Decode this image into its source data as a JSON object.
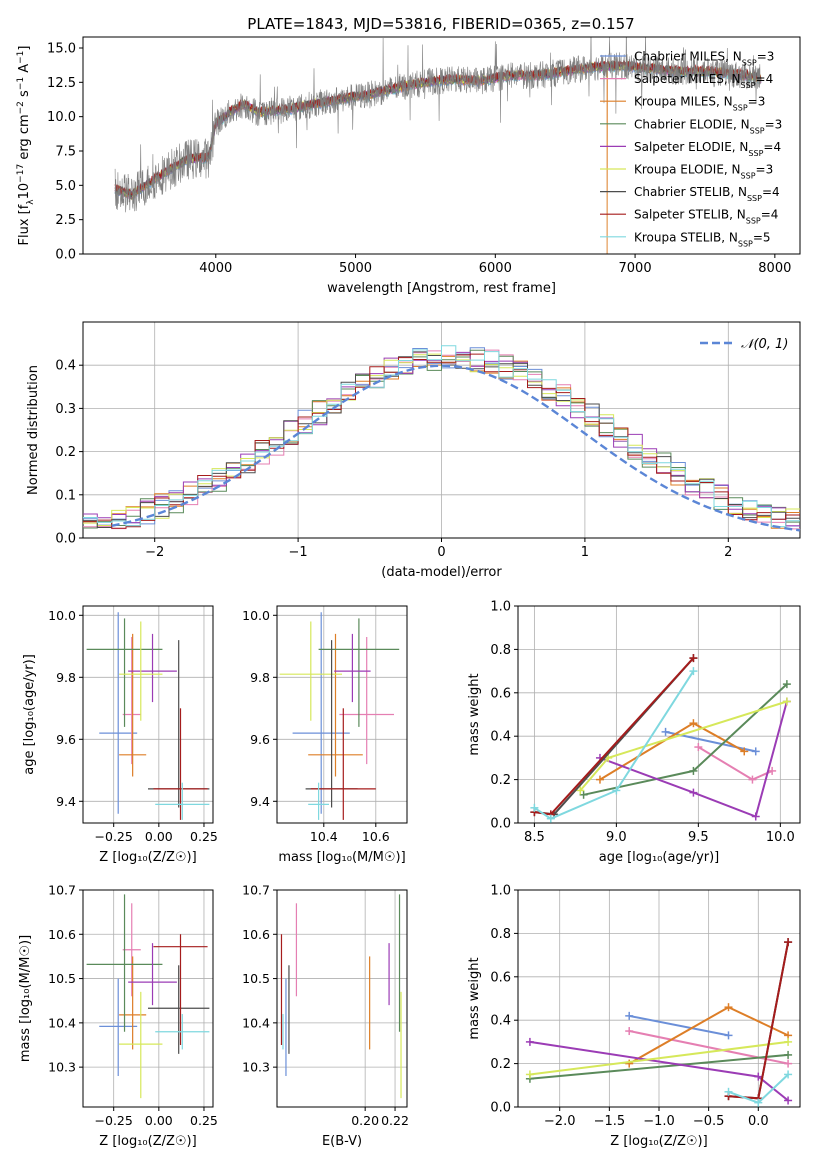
{
  "figure": {
    "title": "PLATE=1843, MJD=53816, FIBERID=0365, z=0.157"
  },
  "colors": {
    "CM": "#6b8fd8",
    "SM": "#e57fb2",
    "KM": "#dd7e27",
    "CE": "#5a8a5a",
    "SE": "#9b3cb5",
    "KE": "#d6e85a",
    "CS": "#4d4d4d",
    "SS": "#a51c1c",
    "KS": "#7fd8df",
    "normal": "#5b86d6",
    "grid": "#b0b0b0"
  },
  "chart_data": [
    {
      "id": "spectrum",
      "type": "line",
      "xlabel": "wavelength [Angstrom, rest frame]",
      "ylabel_parts": [
        "Flux [f",
        "λ",
        "10",
        "−17",
        " erg cm",
        "−2",
        " s",
        "−1",
        " A",
        "−1",
        "]"
      ],
      "xlim": [
        3050,
        8180
      ],
      "ylim": [
        0,
        15.8
      ],
      "xticks": [
        4000,
        5000,
        6000,
        7000,
        8000
      ],
      "yticks": [
        0.0,
        2.5,
        5.0,
        7.5,
        10.0,
        12.5,
        15.0
      ],
      "ytick_labels": [
        "0.0",
        "2.5",
        "5.0",
        "7.5",
        "10.0",
        "12.5",
        "15.0"
      ],
      "grid": false,
      "legend_position": "top-right",
      "data_x": [
        3280,
        3400,
        3600,
        3800,
        3950,
        4000,
        4100,
        4200,
        4300,
        4500,
        4700,
        4900,
        5100,
        5300,
        5500,
        5700,
        5900,
        6100,
        6300,
        6500,
        6700,
        6900,
        7100,
        7300,
        7500,
        7700,
        7900
      ],
      "data_y": [
        4.7,
        4.3,
        5.7,
        6.9,
        7.0,
        9.5,
        10.3,
        10.9,
        10.3,
        10.5,
        10.9,
        11.3,
        11.6,
        12.1,
        12.5,
        12.7,
        12.6,
        13.0,
        13.0,
        13.3,
        13.6,
        13.7,
        13.5,
        13.3,
        13.3,
        13.1,
        12.8
      ],
      "model_edges": [
        {
          "series": "SM",
          "x": 3530
        },
        {
          "series": "KE",
          "x": 3910
        },
        {
          "series": "KM",
          "x": 6800
        },
        {
          "series": "SS",
          "x": 7410
        }
      ],
      "series": [
        {
          "key": "CM",
          "name": "Chabrier MILES",
          "nssp": "3"
        },
        {
          "key": "SM",
          "name": "Salpeter MILES",
          "nssp": "4"
        },
        {
          "key": "KM",
          "name": "Kroupa MILES",
          "nssp": "3"
        },
        {
          "key": "CE",
          "name": "Chabrier ELODIE",
          "nssp": "3"
        },
        {
          "key": "SE",
          "name": "Salpeter ELODIE",
          "nssp": "4"
        },
        {
          "key": "KE",
          "name": "Kroupa ELODIE",
          "nssp": "3"
        },
        {
          "key": "CS",
          "name": "Chabrier STELIB",
          "nssp": "4"
        },
        {
          "key": "SS",
          "name": "Salpeter STELIB",
          "nssp": "4"
        },
        {
          "key": "KS",
          "name": "Kroupa STELIB",
          "nssp": "5"
        }
      ]
    },
    {
      "id": "residuals",
      "type": "line",
      "xlabel": "(data-model)/error",
      "ylabel": "Normed distribution",
      "xlim": [
        -2.5,
        2.5
      ],
      "ylim": [
        0,
        0.5
      ],
      "xticks": [
        -2,
        -1,
        0,
        1,
        2
      ],
      "xtick_labels": [
        "−2",
        "−1",
        "0",
        "1",
        "2"
      ],
      "yticks": [
        0.0,
        0.1,
        0.2,
        0.3,
        0.4
      ],
      "ytick_labels": [
        "0.0",
        "0.1",
        "0.2",
        "0.3",
        "0.4"
      ],
      "grid": true,
      "legend": "𝒩(0, 1)",
      "legend_position": "top-right",
      "bin_width": 0.1,
      "bin_start": -2.5
    },
    {
      "id": "age_vs_Z",
      "type": "scatter",
      "xlabel": "Z [log₁₀(Z/Z☉)]",
      "ylabel": "age  [log₁₀(age/yr)]",
      "xlim": [
        -0.42,
        0.3
      ],
      "ylim": [
        9.33,
        10.03
      ],
      "xticks": [
        -0.25,
        0.0,
        0.25
      ],
      "xtick_labels": [
        "−0.25",
        "0.00",
        "0.25"
      ],
      "yticks": [
        9.4,
        9.6,
        9.8,
        10.0
      ],
      "ytick_labels": [
        "9.4",
        "9.6",
        "9.8",
        "10.0"
      ],
      "grid": true
    },
    {
      "id": "age_vs_mass",
      "type": "scatter",
      "xlabel": "mass [log₁₀(M/M☉)]",
      "xlim": [
        10.22,
        10.72
      ],
      "ylim": [
        9.33,
        10.03
      ],
      "xticks": [
        10.4,
        10.6
      ],
      "xtick_labels": [
        "10.4",
        "10.6"
      ],
      "yticks": [
        9.4,
        9.6,
        9.8,
        10.0
      ],
      "ytick_labels": [
        "9.4",
        "9.6",
        "9.8",
        "10.0"
      ],
      "grid": true
    },
    {
      "id": "weight_vs_age",
      "type": "line",
      "xlabel": "age  [log₁₀(age/yr)]",
      "ylabel": "mass weight",
      "xlim": [
        8.4,
        10.12
      ],
      "ylim": [
        0,
        1.0
      ],
      "xticks": [
        8.5,
        9.0,
        9.5,
        10.0
      ],
      "xtick_labels": [
        "8.5",
        "9.0",
        "9.5",
        "10.0"
      ],
      "yticks": [
        0.0,
        0.2,
        0.4,
        0.6,
        0.8,
        1.0
      ],
      "ytick_labels": [
        "0.0",
        "0.2",
        "0.4",
        "0.6",
        "0.8",
        "1.0"
      ],
      "grid": true
    },
    {
      "id": "mass_vs_Z",
      "type": "scatter",
      "xlabel": "Z [log₁₀(Z/Z☉)]",
      "ylabel": "mass [log₁₀(M/M☉)]",
      "xlim": [
        -0.42,
        0.3
      ],
      "ylim": [
        10.21,
        10.7
      ],
      "xticks": [
        -0.25,
        0.0,
        0.25
      ],
      "xtick_labels": [
        "−0.25",
        "0.00",
        "0.25"
      ],
      "yticks": [
        10.3,
        10.4,
        10.5,
        10.6,
        10.7
      ],
      "ytick_labels": [
        "10.3",
        "10.4",
        "10.5",
        "10.6",
        "10.7"
      ],
      "grid": true
    },
    {
      "id": "mass_vs_EBV",
      "type": "scatter",
      "xlabel": "E(B-V)",
      "xlim": [
        0.141,
        0.228
      ],
      "ylim": [
        10.21,
        10.7
      ],
      "xticks": [
        0.2,
        0.22
      ],
      "xtick_labels": [
        "0.20",
        "0.22"
      ],
      "yticks": [
        10.3,
        10.4,
        10.5,
        10.6,
        10.7
      ],
      "ytick_labels": [
        "10.3",
        "10.4",
        "10.5",
        "10.6",
        "10.7"
      ],
      "grid": true
    },
    {
      "id": "weight_vs_Z",
      "type": "line",
      "xlabel": "Z [log₁₀(Z/Z☉)]",
      "ylabel": "mass weight",
      "xlim": [
        -2.42,
        0.42
      ],
      "ylim": [
        0,
        1.0
      ],
      "xticks": [
        -2.0,
        -1.5,
        -1.0,
        -0.5,
        0.0
      ],
      "xtick_labels": [
        "−2.0",
        "−1.5",
        "−1.0",
        "−0.5",
        "0.0"
      ],
      "yticks": [
        0.0,
        0.2,
        0.4,
        0.6,
        0.8,
        1.0
      ],
      "ytick_labels": [
        "0.0",
        "0.2",
        "0.4",
        "0.6",
        "0.8",
        "1.0"
      ],
      "grid": true
    }
  ],
  "fits": [
    {
      "key": "CM",
      "Z": [
        -0.33,
        -0.12
      ],
      "age": [
        9.62,
        9.36,
        10.01
      ],
      "mass": [
        10.392,
        10.28,
        10.5
      ],
      "ebv": 0.147
    },
    {
      "key": "SM",
      "Z": [
        -0.2,
        -0.1
      ],
      "age": [
        9.68,
        9.52,
        9.93
      ],
      "mass": [
        10.565,
        10.46,
        10.67
      ],
      "ebv": 0.154
    },
    {
      "key": "KM",
      "Z": [
        -0.22,
        -0.07
      ],
      "age": [
        9.55,
        9.48,
        9.94
      ],
      "mass": [
        10.418,
        10.34,
        10.55
      ],
      "ebv": 0.203
    },
    {
      "key": "CE",
      "Z": [
        -0.4,
        0.02
      ],
      "age": [
        9.89,
        9.64,
        9.99
      ],
      "mass": [
        10.532,
        10.38,
        10.69
      ],
      "ebv": 0.223
    },
    {
      "key": "SE",
      "Z": [
        -0.17,
        0.1
      ],
      "age": [
        9.82,
        9.72,
        9.94
      ],
      "mass": [
        10.492,
        10.44,
        10.58
      ],
      "ebv": 0.216
    },
    {
      "key": "KE",
      "Z": [
        -0.22,
        0.02
      ],
      "age": [
        9.81,
        9.66,
        9.98
      ],
      "mass": [
        10.352,
        10.23,
        10.47
      ],
      "ebv": 0.224
    },
    {
      "key": "CS",
      "Z": [
        -0.06,
        0.28
      ],
      "age": [
        9.44,
        9.38,
        9.92
      ],
      "mass": [
        10.433,
        10.33,
        10.53
      ],
      "ebv": 0.149
    },
    {
      "key": "SS",
      "Z": [
        -0.03,
        0.27
      ],
      "age": [
        9.44,
        9.34,
        9.7
      ],
      "mass": [
        10.572,
        10.35,
        10.6
      ],
      "ebv": 0.144
    },
    {
      "key": "KS",
      "Z": [
        -0.02,
        0.28
      ],
      "age": [
        9.39,
        9.34,
        9.46
      ],
      "mass": [
        10.38,
        10.34,
        10.42
      ],
      "ebv": 0.145
    }
  ],
  "weights": [
    {
      "key": "CM",
      "age": [
        9.3,
        9.85
      ],
      "Z": [
        -1.3,
        -0.3
      ],
      "w": [
        0.42,
        0.33
      ]
    },
    {
      "key": "SM",
      "age": [
        9.5,
        9.83,
        9.95
      ],
      "Z": [
        -1.3,
        0.3
      ],
      "w": [
        0.35,
        0.2,
        0.24
      ]
    },
    {
      "key": "KM",
      "age": [
        8.9,
        9.47,
        9.78
      ],
      "Z": [
        -1.3,
        -0.3,
        0.3
      ],
      "w": [
        0.2,
        0.46,
        0.33
      ]
    },
    {
      "key": "CE",
      "age": [
        8.8,
        9.47,
        10.04
      ],
      "Z": [
        -2.3,
        0.3
      ],
      "w": [
        0.13,
        0.24,
        0.64
      ]
    },
    {
      "key": "SE",
      "age": [
        8.9,
        9.47,
        9.85,
        10.04
      ],
      "Z": [
        -2.3,
        0.0,
        0.3
      ],
      "w": [
        0.3,
        0.14,
        0.03,
        0.56
      ]
    },
    {
      "key": "KE",
      "age": [
        8.78,
        8.95,
        10.04
      ],
      "Z": [
        -2.3,
        0.3
      ],
      "w": [
        0.15,
        0.3,
        0.56
      ]
    },
    {
      "key": "CS",
      "age": [
        8.5,
        8.62,
        9.47
      ],
      "Z": [
        -0.3,
        0.0,
        0.3
      ],
      "w": [
        0.05,
        0.04,
        0.76
      ]
    },
    {
      "key": "SS",
      "age": [
        8.5,
        8.6,
        9.47
      ],
      "Z": [
        -0.3,
        0.0,
        0.3
      ],
      "w": [
        0.05,
        0.04,
        0.76
      ]
    },
    {
      "key": "KS",
      "age": [
        8.5,
        8.6,
        9.0,
        9.47
      ],
      "Z": [
        -0.3,
        0.0,
        0.3
      ],
      "w": [
        0.07,
        0.02,
        0.15,
        0.7
      ]
    }
  ]
}
